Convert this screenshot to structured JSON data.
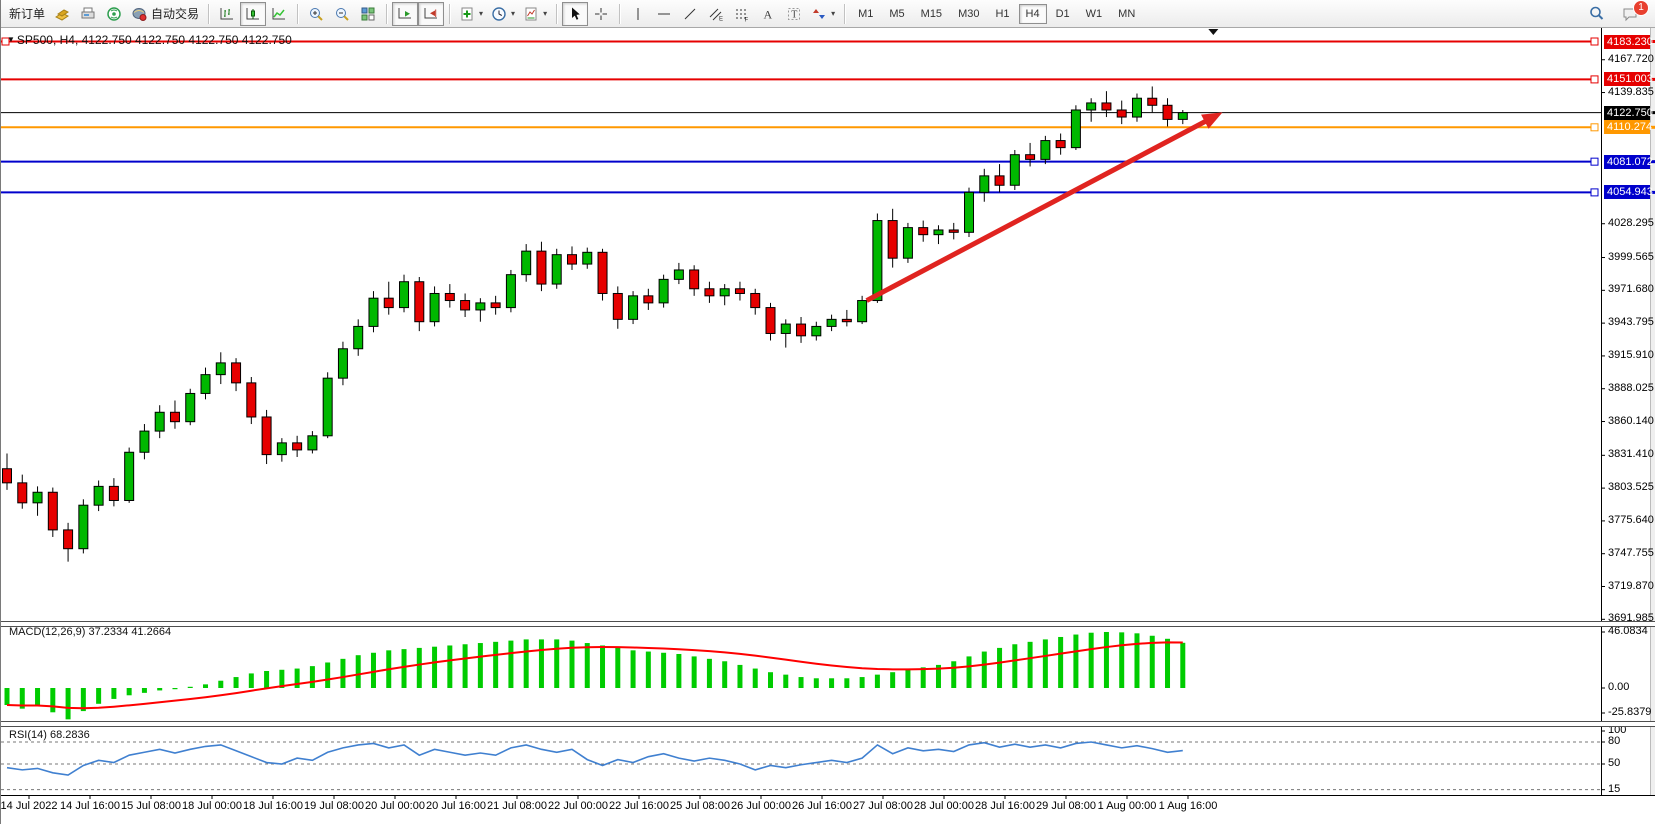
{
  "toolbar": {
    "new_order_label": "新订单",
    "autotrading_label": "自动交易",
    "timeframes": [
      "M1",
      "M5",
      "M15",
      "M30",
      "H1",
      "H4",
      "D1",
      "W1",
      "MN"
    ],
    "active_timeframe": "H4",
    "notification_count": "1"
  },
  "chart": {
    "title": "SP500, H4, 4122.750 4122.750 4122.750 4122.750",
    "symbol": "SP500",
    "period": "H4",
    "current_price": "4122.750",
    "levels": [
      {
        "label": "4183.230",
        "value": 4183.23,
        "color": "red"
      },
      {
        "label": "4151.003",
        "value": 4151.003,
        "color": "red"
      },
      {
        "label": "4122.750",
        "value": 4122.75,
        "color": "black"
      },
      {
        "label": "4110.274",
        "value": 4110.274,
        "color": "orange"
      },
      {
        "label": "4081.072",
        "value": 4081.072,
        "color": "blue"
      },
      {
        "label": "4054.943",
        "value": 4054.943,
        "color": "blue"
      }
    ],
    "price_ticks": [
      4167.72,
      4139.835,
      4028.295,
      3999.565,
      3971.68,
      3943.795,
      3915.91,
      3888.025,
      3860.14,
      3831.41,
      3803.525,
      3775.64,
      3747.755,
      3719.87,
      3691.985
    ],
    "time_labels": [
      "14 Jul 2022",
      "14 Jul 16:00",
      "15 Jul 08:00",
      "18 Jul 00:00",
      "18 Jul 16:00",
      "19 Jul 08:00",
      "20 Jul 00:00",
      "20 Jul 16:00",
      "21 Jul 08:00",
      "22 Jul 00:00",
      "22 Jul 16:00",
      "25 Jul 08:00",
      "26 Jul 00:00",
      "26 Jul 16:00",
      "27 Jul 08:00",
      "28 Jul 00:00",
      "28 Jul 16:00",
      "29 Jul 08:00",
      "1 Aug 00:00",
      "1 Aug 16:00"
    ],
    "candles": [
      [
        3820,
        3833,
        3802,
        3808
      ],
      [
        3808,
        3815,
        3786,
        3791
      ],
      [
        3791,
        3805,
        3780,
        3800
      ],
      [
        3800,
        3804,
        3762,
        3768
      ],
      [
        3768,
        3774,
        3741,
        3752
      ],
      [
        3752,
        3794,
        3748,
        3789
      ],
      [
        3789,
        3810,
        3784,
        3805
      ],
      [
        3805,
        3812,
        3788,
        3793
      ],
      [
        3793,
        3838,
        3791,
        3834
      ],
      [
        3834,
        3858,
        3828,
        3852
      ],
      [
        3852,
        3874,
        3846,
        3868
      ],
      [
        3868,
        3878,
        3854,
        3860
      ],
      [
        3860,
        3888,
        3857,
        3884
      ],
      [
        3884,
        3906,
        3879,
        3900
      ],
      [
        3900,
        3919,
        3892,
        3910
      ],
      [
        3910,
        3914,
        3886,
        3893
      ],
      [
        3893,
        3898,
        3858,
        3864
      ],
      [
        3864,
        3870,
        3824,
        3832
      ],
      [
        3832,
        3846,
        3826,
        3842
      ],
      [
        3842,
        3848,
        3830,
        3836
      ],
      [
        3836,
        3852,
        3833,
        3848
      ],
      [
        3848,
        3902,
        3846,
        3897
      ],
      [
        3897,
        3928,
        3891,
        3922
      ],
      [
        3922,
        3947,
        3916,
        3941
      ],
      [
        3941,
        3971,
        3936,
        3965
      ],
      [
        3965,
        3979,
        3951,
        3957
      ],
      [
        3957,
        3985,
        3953,
        3979
      ],
      [
        3979,
        3983,
        3937,
        3945
      ],
      [
        3945,
        3975,
        3941,
        3969
      ],
      [
        3969,
        3977,
        3957,
        3963
      ],
      [
        3963,
        3969,
        3949,
        3955
      ],
      [
        3955,
        3965,
        3945,
        3961
      ],
      [
        3961,
        3967,
        3951,
        3957
      ],
      [
        3957,
        3989,
        3953,
        3985
      ],
      [
        3985,
        4011,
        3979,
        4005
      ],
      [
        4005,
        4013,
        3971,
        3977
      ],
      [
        3977,
        4007,
        3973,
        4002
      ],
      [
        4002,
        4009,
        3989,
        3994
      ],
      [
        3994,
        4008,
        3990,
        4004
      ],
      [
        4004,
        4007,
        3963,
        3969
      ],
      [
        3969,
        3975,
        3939,
        3947
      ],
      [
        3947,
        3971,
        3943,
        3967
      ],
      [
        3967,
        3973,
        3955,
        3961
      ],
      [
        3961,
        3985,
        3957,
        3981
      ],
      [
        3981,
        3995,
        3977,
        3989
      ],
      [
        3989,
        3993,
        3967,
        3973
      ],
      [
        3973,
        3979,
        3961,
        3967
      ],
      [
        3967,
        3977,
        3959,
        3973
      ],
      [
        3973,
        3979,
        3963,
        3969
      ],
      [
        3969,
        3973,
        3951,
        3957
      ],
      [
        3957,
        3961,
        3929,
        3935
      ],
      [
        3935,
        3947,
        3923,
        3943
      ],
      [
        3943,
        3949,
        3927,
        3933
      ],
      [
        3933,
        3945,
        3929,
        3941
      ],
      [
        3941,
        3951,
        3937,
        3947
      ],
      [
        3947,
        3955,
        3941,
        3945
      ],
      [
        3945,
        3967,
        3943,
        3963
      ],
      [
        3963,
        4037,
        3961,
        4031
      ],
      [
        4031,
        4041,
        3991,
        3999
      ],
      [
        3999,
        4029,
        3995,
        4025
      ],
      [
        4025,
        4031,
        4013,
        4019
      ],
      [
        4019,
        4027,
        4011,
        4023
      ],
      [
        4023,
        4029,
        4015,
        4021
      ],
      [
        4021,
        4059,
        4017,
        4055
      ],
      [
        4055,
        4075,
        4047,
        4069
      ],
      [
        4069,
        4079,
        4055,
        4061
      ],
      [
        4061,
        4091,
        4057,
        4087
      ],
      [
        4087,
        4097,
        4077,
        4083
      ],
      [
        4083,
        4103,
        4079,
        4099
      ],
      [
        4099,
        4105,
        4087,
        4093
      ],
      [
        4093,
        4129,
        4091,
        4125
      ],
      [
        4125,
        4135,
        4115,
        4131
      ],
      [
        4131,
        4141,
        4119,
        4125
      ],
      [
        4125,
        4133,
        4113,
        4119
      ],
      [
        4119,
        4139,
        4115,
        4135
      ],
      [
        4135,
        4145,
        4123,
        4129
      ],
      [
        4129,
        4135,
        4111,
        4117
      ],
      [
        4117,
        4125,
        4113,
        4122.75
      ]
    ],
    "trend_arrow": {
      "from_bar": 56.3,
      "from_price": 3963,
      "to_bar": 79.6,
      "to_price": 4123
    },
    "top_marker_bar": 79
  },
  "macd": {
    "name": "MACD(12,26,9)",
    "value": "37.2334",
    "signal_value": "41.2664",
    "axis_labels": [
      "46.0834",
      "0.00",
      "-25.8379"
    ],
    "histogram": [
      -14,
      -17,
      -15,
      -20,
      -25.8,
      -19,
      -13,
      -9,
      -6,
      -4,
      -2,
      -1,
      1,
      3,
      6,
      9,
      12,
      14,
      15,
      16,
      18,
      21,
      24,
      27,
      29,
      31,
      32,
      33,
      34,
      35,
      36,
      37,
      38,
      39,
      40,
      40,
      40,
      39,
      37,
      35,
      33,
      31,
      30,
      29,
      28,
      26,
      24,
      22,
      19,
      16,
      13,
      11,
      9,
      8,
      8,
      8,
      9,
      11,
      13,
      15,
      17,
      19,
      22,
      26,
      30,
      33,
      36,
      38,
      40,
      42,
      44,
      45.5,
      46.1,
      45.8,
      45,
      43,
      40.5,
      37.2
    ]
  },
  "rsi": {
    "name": "RSI(14)",
    "value": "68.2836",
    "axis_labels": [
      "100",
      "80",
      "50",
      "15"
    ],
    "level_lines": [
      80,
      50,
      15
    ],
    "values": [
      45,
      42,
      44,
      38,
      35,
      48,
      55,
      52,
      62,
      66,
      70,
      65,
      70,
      74,
      76,
      68,
      60,
      52,
      50,
      58,
      55,
      66,
      72,
      76,
      78,
      72,
      76,
      62,
      70,
      66,
      62,
      65,
      62,
      72,
      76,
      70,
      66,
      70,
      56,
      48,
      56,
      52,
      60,
      64,
      58,
      54,
      58,
      55,
      50,
      42,
      48,
      45,
      49,
      52,
      55,
      52,
      58,
      76,
      64,
      72,
      68,
      70,
      67,
      76,
      79,
      73,
      77,
      73,
      76,
      72,
      78,
      80,
      76,
      72,
      75,
      71,
      66,
      68.28
    ]
  },
  "colors": {
    "levels": {
      "red": "#e60000",
      "orange": "#ff9800",
      "blue": "#0000cc",
      "black": "#000000"
    },
    "candle_up": "#00b800",
    "candle_down": "#e60000",
    "candle_outline": "#000000",
    "macd_histogram": "#00cc00",
    "macd_signal": "#ff0000",
    "rsi_line": "#4080d0",
    "trend_arrow": "#e02420"
  }
}
